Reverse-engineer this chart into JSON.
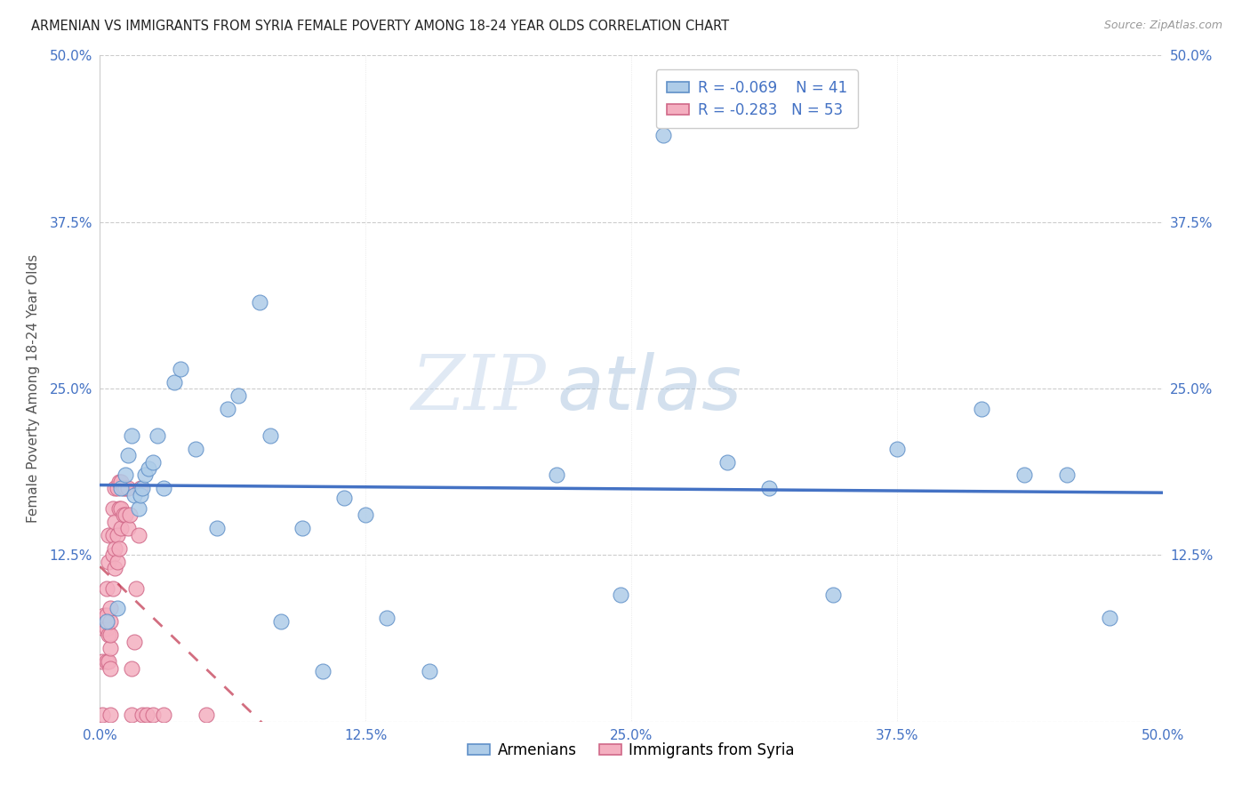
{
  "title": "ARMENIAN VS IMMIGRANTS FROM SYRIA FEMALE POVERTY AMONG 18-24 YEAR OLDS CORRELATION CHART",
  "source": "Source: ZipAtlas.com",
  "ylabel": "Female Poverty Among 18-24 Year Olds",
  "xlim": [
    0.0,
    0.5
  ],
  "ylim": [
    0.0,
    0.5
  ],
  "xtick_vals": [
    0.0,
    0.125,
    0.25,
    0.375,
    0.5
  ],
  "xtick_labels": [
    "0.0%",
    "12.5%",
    "25.0%",
    "37.5%",
    "50.0%"
  ],
  "ytick_vals": [
    0.0,
    0.125,
    0.25,
    0.375,
    0.5
  ],
  "ytick_labels": [
    "",
    "12.5%",
    "25.0%",
    "37.5%",
    "50.0%"
  ],
  "legend_r1": "R = -0.069",
  "legend_n1": "N = 41",
  "legend_r2": "R = -0.283",
  "legend_n2": "N = 53",
  "armenian_color": "#aecce8",
  "syria_color": "#f4afc0",
  "trend_armenian_color": "#4472c4",
  "trend_syria_color": "#c0304a",
  "armenian_x": [
    0.003,
    0.008,
    0.01,
    0.012,
    0.013,
    0.015,
    0.016,
    0.018,
    0.019,
    0.02,
    0.021,
    0.023,
    0.025,
    0.027,
    0.03,
    0.035,
    0.038,
    0.045,
    0.055,
    0.06,
    0.065,
    0.075,
    0.08,
    0.085,
    0.095,
    0.105,
    0.115,
    0.125,
    0.135,
    0.155,
    0.215,
    0.245,
    0.265,
    0.295,
    0.315,
    0.345,
    0.375,
    0.415,
    0.435,
    0.455,
    0.475
  ],
  "armenian_y": [
    0.075,
    0.085,
    0.175,
    0.185,
    0.2,
    0.215,
    0.17,
    0.16,
    0.17,
    0.175,
    0.185,
    0.19,
    0.195,
    0.215,
    0.175,
    0.255,
    0.265,
    0.205,
    0.145,
    0.235,
    0.245,
    0.315,
    0.215,
    0.075,
    0.145,
    0.038,
    0.168,
    0.155,
    0.078,
    0.038,
    0.185,
    0.095,
    0.44,
    0.195,
    0.175,
    0.095,
    0.205,
    0.235,
    0.185,
    0.185,
    0.078
  ],
  "syria_x": [
    0.001,
    0.001,
    0.002,
    0.002,
    0.003,
    0.003,
    0.003,
    0.003,
    0.004,
    0.004,
    0.004,
    0.004,
    0.005,
    0.005,
    0.005,
    0.005,
    0.005,
    0.005,
    0.006,
    0.006,
    0.006,
    0.006,
    0.007,
    0.007,
    0.007,
    0.007,
    0.008,
    0.008,
    0.008,
    0.009,
    0.009,
    0.009,
    0.01,
    0.01,
    0.01,
    0.011,
    0.011,
    0.012,
    0.012,
    0.013,
    0.013,
    0.014,
    0.015,
    0.015,
    0.016,
    0.017,
    0.018,
    0.019,
    0.02,
    0.022,
    0.025,
    0.03,
    0.05
  ],
  "syria_y": [
    0.005,
    0.045,
    0.07,
    0.08,
    0.045,
    0.07,
    0.08,
    0.1,
    0.045,
    0.065,
    0.12,
    0.14,
    0.005,
    0.04,
    0.055,
    0.065,
    0.075,
    0.085,
    0.1,
    0.125,
    0.14,
    0.16,
    0.115,
    0.13,
    0.15,
    0.175,
    0.12,
    0.14,
    0.175,
    0.13,
    0.16,
    0.18,
    0.145,
    0.16,
    0.18,
    0.155,
    0.175,
    0.155,
    0.175,
    0.145,
    0.175,
    0.155,
    0.005,
    0.04,
    0.06,
    0.1,
    0.14,
    0.175,
    0.005,
    0.005,
    0.005,
    0.005,
    0.005
  ],
  "trend_armenian_slope": -0.2,
  "trend_armenian_intercept": 0.195,
  "trend_syria_slope": -3.5,
  "trend_syria_intercept": 0.175
}
